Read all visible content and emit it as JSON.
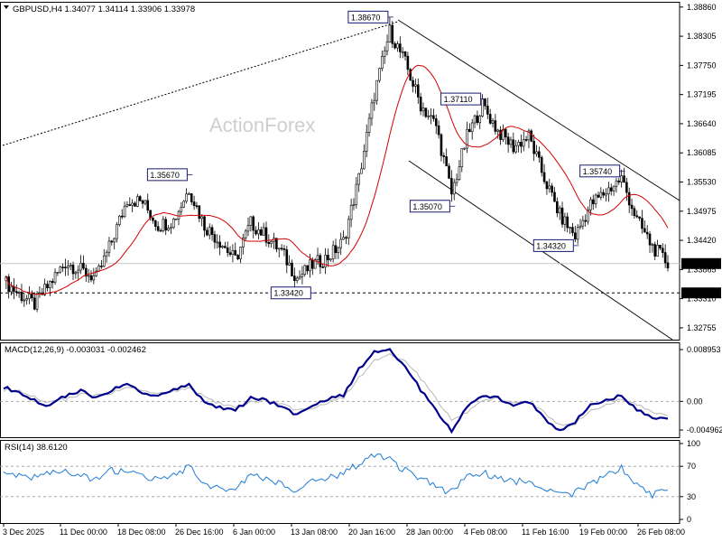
{
  "header": {
    "symbol": "GBPUSD,H4",
    "ohlc": "1.34077 1.34114 1.33906 1.33978",
    "watermark": "ActionForex"
  },
  "chart_data": [
    {
      "type": "candlestick",
      "title": "GBPUSD,H4 1.34077 1.34114 1.33906 1.33978",
      "y_ticks": [
        "1.38860",
        "1.38305",
        "1.37750",
        "1.37195",
        "1.36640",
        "1.36085",
        "1.35530",
        "1.34975",
        "1.34420",
        "1.33865",
        "1.33310",
        "1.32755"
      ],
      "ylim": [
        1.3253,
        1.3896
      ],
      "current_price": "1.33978",
      "support_level": "1.33420",
      "annotations": [
        {
          "label": "1.38670",
          "date_index": 25,
          "price": 1.3867
        },
        {
          "label": "1.35670",
          "date_index": 12,
          "price": 1.3567
        },
        {
          "label": "1.37110",
          "date_index": 31,
          "price": 1.3711
        },
        {
          "label": "1.35070",
          "date_index": 29,
          "price": 1.3507
        },
        {
          "label": "1.35740",
          "date_index": 40,
          "price": 1.3574
        },
        {
          "label": "1.34320",
          "date_index": 37,
          "price": 1.3432
        },
        {
          "label": "1.33420",
          "date_index": 20,
          "price": 1.3342
        }
      ],
      "close_path": [
        1.3365,
        1.334,
        1.332,
        1.336,
        1.34,
        1.3385,
        1.337,
        1.344,
        1.352,
        1.3515,
        1.347,
        1.348,
        1.354,
        1.347,
        1.344,
        1.3405,
        1.3475,
        1.345,
        1.342,
        1.337,
        1.3395,
        1.341,
        1.344,
        1.356,
        1.372,
        1.384,
        1.378,
        1.37,
        1.366,
        1.353,
        1.364,
        1.37,
        1.365,
        1.362,
        1.364,
        1.356,
        1.349,
        1.345,
        1.351,
        1.3535,
        1.356,
        1.348,
        1.343,
        1.3398
      ],
      "x_ticks": [
        "3 Dec 2025",
        "11 Dec 00:00",
        "18 Dec 08:00",
        "26 Dec 16:00",
        "6 Jan 00:00",
        "13 Jan 08:00",
        "20 Jan 16:00",
        "28 Jan 00:00",
        "4 Feb 08:00",
        "11 Feb 16:00",
        "19 Feb 00:00",
        "26 Feb 08:00"
      ]
    },
    {
      "type": "line",
      "title": "MACD(12,26,9) -0.003031 -0.002462",
      "y_ticks": [
        "0.008953",
        "0.00",
        "-0.004962"
      ],
      "ylim": [
        -0.0062,
        0.0102
      ],
      "macd": [
        0.0025,
        0.0015,
        0.0002,
        -0.0008,
        0.001,
        0.0018,
        0.0005,
        0.002,
        0.003,
        0.0015,
        0.001,
        0.002,
        0.0028,
        -0.0002,
        -0.001,
        -0.0015,
        0.0005,
        0.0002,
        -0.001,
        -0.0025,
        -0.0005,
        0.0005,
        0.001,
        0.0055,
        0.0085,
        0.009,
        0.006,
        0.002,
        -0.0015,
        -0.005,
        -0.001,
        0.001,
        0.0005,
        -0.0005,
        0.0,
        -0.003,
        -0.005,
        -0.0035,
        -0.0005,
        0.0003,
        0.001,
        -0.0015,
        -0.003,
        -0.003
      ],
      "signal": [
        0.002,
        0.0018,
        0.0008,
        -0.0002,
        0.0004,
        0.0012,
        0.001,
        0.0015,
        0.0024,
        0.002,
        0.0014,
        0.0017,
        0.0022,
        0.0008,
        -0.0003,
        -0.001,
        -0.0002,
        0.0001,
        -0.0005,
        -0.0017,
        -0.001,
        -0.0001,
        0.0006,
        0.004,
        0.007,
        0.0082,
        0.007,
        0.004,
        0.0005,
        -0.003,
        -0.002,
        0.0002,
        0.0004,
        0.0,
        -0.0001,
        -0.002,
        -0.004,
        -0.0038,
        -0.0015,
        -0.0005,
        0.0004,
        -0.0006,
        -0.002,
        -0.0025
      ],
      "x_ticks_ref": "shared"
    },
    {
      "type": "line",
      "title": "RSI(14) 38.6120",
      "y_ticks": [
        "100",
        "70",
        "30",
        "0"
      ],
      "ylim": [
        0,
        100
      ],
      "levels": [
        70,
        30
      ],
      "values": [
        62,
        58,
        55,
        60,
        66,
        57,
        52,
        64,
        65,
        55,
        52,
        60,
        68,
        48,
        40,
        42,
        60,
        52,
        45,
        35,
        50,
        55,
        60,
        74,
        85,
        78,
        64,
        55,
        42,
        36,
        55,
        62,
        55,
        48,
        52,
        40,
        36,
        34,
        48,
        58,
        68,
        44,
        33,
        38.6
      ]
    }
  ]
}
